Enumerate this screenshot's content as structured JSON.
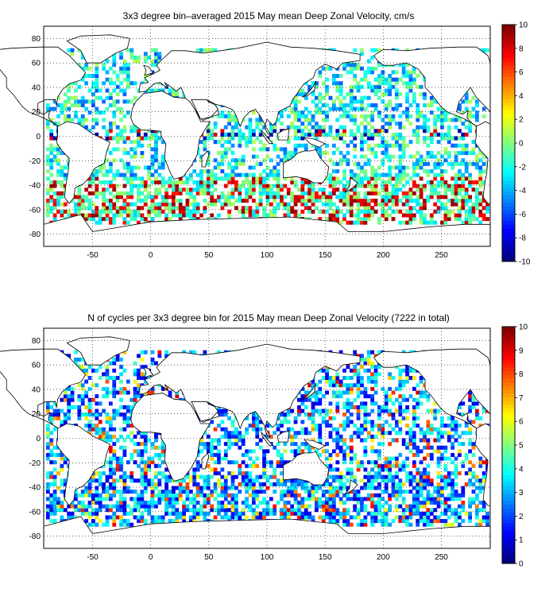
{
  "chart_data": [
    {
      "type": "heatmap",
      "title": "3x3 degree bin–averaged 2015 May mean Deep Zonal Velocity, cm/s",
      "xlabel": "",
      "ylabel": "",
      "xlim": [
        -92,
        292
      ],
      "ylim": [
        -90,
        90
      ],
      "xticks": [
        -50,
        0,
        50,
        100,
        150,
        200,
        250
      ],
      "yticks": [
        -80,
        -60,
        -40,
        -20,
        0,
        20,
        40,
        60,
        80
      ],
      "colorbar": {
        "min": -10,
        "max": 10,
        "ticks": [
          -10,
          -8,
          -6,
          -4,
          -2,
          0,
          2,
          4,
          6,
          8,
          10
        ],
        "colormap": "jet"
      },
      "grid": true,
      "bin_size_deg": 3,
      "values_note_visible": "",
      "cells": []
    },
    {
      "type": "heatmap",
      "title": "N of cycles per 3x3 degree bin for 2015 May mean Deep Zonal Velocity (7222 in total)",
      "xlabel": "",
      "ylabel": "",
      "xlim": [
        -92,
        292
      ],
      "ylim": [
        -90,
        90
      ],
      "xticks": [
        -50,
        0,
        50,
        100,
        150,
        200,
        250
      ],
      "yticks": [
        -80,
        -60,
        -40,
        -20,
        0,
        20,
        40,
        60,
        80
      ],
      "colorbar": {
        "min": 0,
        "max": 10,
        "ticks": [
          0,
          1,
          2,
          3,
          4,
          5,
          6,
          7,
          8,
          9,
          10
        ],
        "colormap": "jet"
      },
      "grid": true,
      "bin_size_deg": 3,
      "total_cycles": 7222,
      "cells": []
    }
  ],
  "labels": {
    "top_title": "3x3 degree bin–averaged 2015 May mean Deep Zonal Velocity, cm/s",
    "bottom_title": "N of cycles per 3x3 degree bin for 2015 May mean Deep Zonal Velocity (7222 in total)"
  }
}
